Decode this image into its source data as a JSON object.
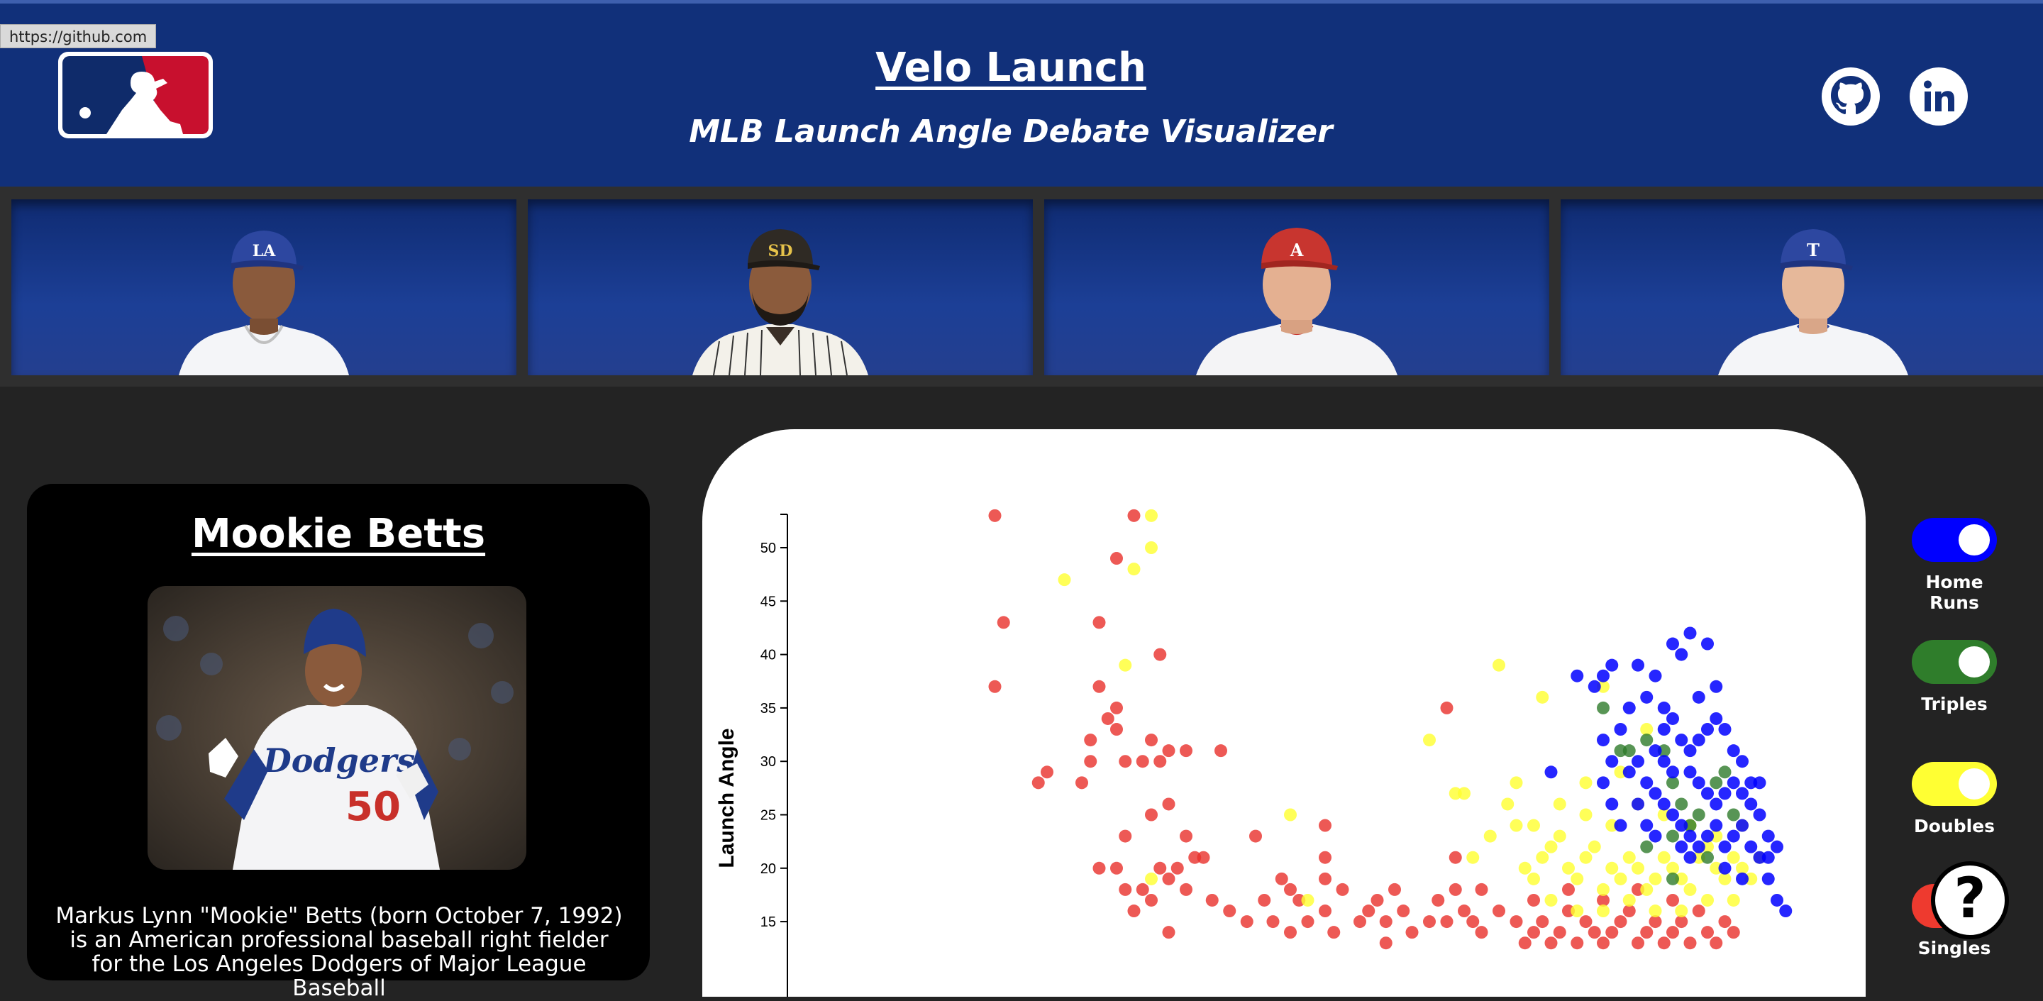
{
  "browser": {
    "status_url": "https://github.com"
  },
  "header": {
    "title": "Velo Launch",
    "subtitle": "MLB Launch Angle Debate Visualizer",
    "logo_icon": "mlb-logo",
    "links": [
      {
        "icon": "github-icon"
      },
      {
        "icon": "linkedin-icon"
      }
    ]
  },
  "players": [
    {
      "team": "LA",
      "cap_color": "#2d47a0",
      "logo_color": "#ffffff",
      "jersey": "white"
    },
    {
      "team": "SD",
      "cap_color": "#2f2a24",
      "logo_color": "#e6c24a",
      "jersey": "pinstripe"
    },
    {
      "team": "A",
      "cap_color": "#c8352f",
      "logo_color": "#ffffff",
      "jersey": "white"
    },
    {
      "team": "T",
      "cap_color": "#2d47a0",
      "logo_color": "#ffffff",
      "jersey": "white"
    }
  ],
  "bio": {
    "name": "Mookie Betts",
    "text": "Markus Lynn \"Mookie\" Betts (born October 7, 1992) is an American professional baseball right fielder for the Los Angeles Dodgers of Major League Baseball",
    "jersey_text": "Dodgers",
    "jersey_number": "50"
  },
  "toggles": [
    {
      "label": "Home Runs",
      "color": "#0000ff"
    },
    {
      "label": "Triples",
      "color": "#2f7d2b"
    },
    {
      "label": "Doubles",
      "color": "#ffff33"
    },
    {
      "label": "Singles",
      "color": "#ee3a2f"
    }
  ],
  "help": {
    "label": "?"
  },
  "chart_data": {
    "type": "scatter",
    "ylabel": "Launch Angle",
    "xlabel": "",
    "yticks": [
      15,
      20,
      25,
      30,
      35,
      40,
      45,
      50
    ],
    "ylim": [
      12,
      53
    ],
    "xlim": [
      0,
      100
    ],
    "series": [
      {
        "name": "Singles",
        "color": "#e8302a",
        "points": [
          [
            10,
            53
          ],
          [
            11,
            43
          ],
          [
            10,
            37
          ],
          [
            26,
            53
          ],
          [
            24,
            49
          ],
          [
            22,
            43
          ],
          [
            22,
            37
          ],
          [
            21,
            32
          ],
          [
            21,
            30
          ],
          [
            20,
            28
          ],
          [
            16,
            29
          ],
          [
            15,
            28
          ],
          [
            24,
            35
          ],
          [
            23,
            34
          ],
          [
            24,
            33
          ],
          [
            25,
            30
          ],
          [
            29,
            40
          ],
          [
            28,
            32
          ],
          [
            27,
            30
          ],
          [
            29,
            30
          ],
          [
            30,
            31
          ],
          [
            32,
            31
          ],
          [
            36,
            31
          ],
          [
            28,
            25
          ],
          [
            30,
            26
          ],
          [
            25,
            23
          ],
          [
            22,
            20
          ],
          [
            24,
            20
          ],
          [
            25,
            18
          ],
          [
            27,
            18
          ],
          [
            26,
            16
          ],
          [
            28,
            17
          ],
          [
            30,
            19
          ],
          [
            31,
            20
          ],
          [
            29,
            20
          ],
          [
            32,
            23
          ],
          [
            33,
            21
          ],
          [
            34,
            21
          ],
          [
            30,
            14
          ],
          [
            32,
            18
          ],
          [
            35,
            17
          ],
          [
            37,
            16
          ],
          [
            39,
            15
          ],
          [
            40,
            23
          ],
          [
            41,
            17
          ],
          [
            43,
            19
          ],
          [
            44,
            18
          ],
          [
            45,
            17
          ],
          [
            42,
            15
          ],
          [
            44,
            14
          ],
          [
            46,
            15
          ],
          [
            48,
            16
          ],
          [
            48,
            19
          ],
          [
            48,
            21
          ],
          [
            48,
            24
          ],
          [
            49,
            14
          ],
          [
            50,
            18
          ],
          [
            52,
            15
          ],
          [
            53,
            16
          ],
          [
            54,
            17
          ],
          [
            55,
            15
          ],
          [
            56,
            18
          ],
          [
            57,
            16
          ],
          [
            55,
            13
          ],
          [
            58,
            14
          ],
          [
            60,
            15
          ],
          [
            61,
            17
          ],
          [
            62,
            15
          ],
          [
            63,
            18
          ],
          [
            64,
            16
          ],
          [
            65,
            15
          ],
          [
            66,
            14
          ],
          [
            62,
            35
          ],
          [
            63,
            21
          ],
          [
            66,
            18
          ],
          [
            68,
            16
          ],
          [
            70,
            15
          ],
          [
            71,
            13
          ],
          [
            72,
            14
          ],
          [
            73,
            15
          ],
          [
            74,
            13
          ],
          [
            75,
            14
          ],
          [
            76,
            16
          ],
          [
            77,
            13
          ],
          [
            78,
            15
          ],
          [
            79,
            14
          ],
          [
            80,
            13
          ],
          [
            81,
            14
          ],
          [
            82,
            15
          ],
          [
            83,
            16
          ],
          [
            84,
            13
          ],
          [
            85,
            14
          ],
          [
            86,
            15
          ],
          [
            87,
            13
          ],
          [
            88,
            14
          ],
          [
            89,
            15
          ],
          [
            90,
            13
          ],
          [
            91,
            16
          ],
          [
            92,
            14
          ],
          [
            93,
            13
          ],
          [
            94,
            15
          ],
          [
            95,
            14
          ],
          [
            72,
            17
          ],
          [
            76,
            18
          ],
          [
            80,
            17
          ],
          [
            84,
            18
          ],
          [
            88,
            17
          ]
        ]
      },
      {
        "name": "Doubles",
        "color": "#ffff2e",
        "points": [
          [
            28,
            53
          ],
          [
            28,
            50
          ],
          [
            26,
            48
          ],
          [
            18,
            47
          ],
          [
            25,
            39
          ],
          [
            28,
            19
          ],
          [
            44,
            25
          ],
          [
            46,
            17
          ],
          [
            60,
            32
          ],
          [
            63,
            27
          ],
          [
            64,
            27
          ],
          [
            65,
            21
          ],
          [
            67,
            23
          ],
          [
            69,
            26
          ],
          [
            70,
            24
          ],
          [
            70,
            28
          ],
          [
            71,
            20
          ],
          [
            72,
            19
          ],
          [
            73,
            21
          ],
          [
            74,
            22
          ],
          [
            75,
            23
          ],
          [
            76,
            20
          ],
          [
            77,
            19
          ],
          [
            78,
            21
          ],
          [
            79,
            22
          ],
          [
            80,
            18
          ],
          [
            81,
            20
          ],
          [
            82,
            19
          ],
          [
            83,
            21
          ],
          [
            84,
            20
          ],
          [
            85,
            18
          ],
          [
            86,
            19
          ],
          [
            87,
            21
          ],
          [
            88,
            20
          ],
          [
            89,
            19
          ],
          [
            90,
            18
          ],
          [
            91,
            21
          ],
          [
            92,
            22
          ],
          [
            93,
            20
          ],
          [
            94,
            19
          ],
          [
            95,
            21
          ],
          [
            96,
            20
          ],
          [
            97,
            19
          ],
          [
            98,
            21
          ],
          [
            72,
            24
          ],
          [
            75,
            26
          ],
          [
            78,
            25
          ],
          [
            81,
            24
          ],
          [
            84,
            26
          ],
          [
            87,
            25
          ],
          [
            90,
            24
          ],
          [
            93,
            23
          ],
          [
            96,
            24
          ],
          [
            74,
            17
          ],
          [
            77,
            16
          ],
          [
            80,
            16
          ],
          [
            83,
            17
          ],
          [
            86,
            16
          ],
          [
            89,
            16
          ],
          [
            92,
            17
          ],
          [
            95,
            17
          ],
          [
            68,
            39
          ],
          [
            80,
            37
          ],
          [
            73,
            36
          ],
          [
            85,
            33
          ],
          [
            78,
            28
          ],
          [
            82,
            29
          ]
        ]
      },
      {
        "name": "Triples",
        "color": "#2e7a2a",
        "points": [
          [
            80,
            35
          ],
          [
            82,
            31
          ],
          [
            83,
            31
          ],
          [
            85,
            32
          ],
          [
            87,
            31
          ],
          [
            88,
            28
          ],
          [
            89,
            26
          ],
          [
            90,
            24
          ],
          [
            91,
            25
          ],
          [
            93,
            28
          ],
          [
            94,
            29
          ],
          [
            95,
            25
          ],
          [
            88,
            23
          ],
          [
            85,
            22
          ],
          [
            92,
            21
          ],
          [
            88,
            19
          ]
        ]
      },
      {
        "name": "Home Runs",
        "color": "#0000ff",
        "points": [
          [
            74,
            29
          ],
          [
            77,
            38
          ],
          [
            79,
            37
          ],
          [
            80,
            38
          ],
          [
            81,
            39
          ],
          [
            84,
            39
          ],
          [
            86,
            38
          ],
          [
            88,
            41
          ],
          [
            89,
            40
          ],
          [
            90,
            42
          ],
          [
            92,
            41
          ],
          [
            93,
            37
          ],
          [
            91,
            36
          ],
          [
            87,
            35
          ],
          [
            85,
            36
          ],
          [
            83,
            35
          ],
          [
            82,
            33
          ],
          [
            80,
            32
          ],
          [
            81,
            30
          ],
          [
            83,
            29
          ],
          [
            84,
            30
          ],
          [
            86,
            31
          ],
          [
            87,
            33
          ],
          [
            88,
            34
          ],
          [
            89,
            32
          ],
          [
            90,
            31
          ],
          [
            91,
            32
          ],
          [
            92,
            33
          ],
          [
            93,
            34
          ],
          [
            94,
            33
          ],
          [
            95,
            31
          ],
          [
            96,
            30
          ],
          [
            97,
            28
          ],
          [
            98,
            28
          ],
          [
            87,
            30
          ],
          [
            88,
            29
          ],
          [
            90,
            29
          ],
          [
            91,
            28
          ],
          [
            92,
            27
          ],
          [
            93,
            26
          ],
          [
            94,
            27
          ],
          [
            95,
            28
          ],
          [
            96,
            27
          ],
          [
            97,
            26
          ],
          [
            98,
            25
          ],
          [
            99,
            23
          ],
          [
            100,
            22
          ],
          [
            85,
            28
          ],
          [
            86,
            27
          ],
          [
            87,
            26
          ],
          [
            88,
            25
          ],
          [
            89,
            24
          ],
          [
            90,
            23
          ],
          [
            91,
            22
          ],
          [
            92,
            23
          ],
          [
            93,
            24
          ],
          [
            94,
            22
          ],
          [
            95,
            23
          ],
          [
            96,
            24
          ],
          [
            97,
            22
          ],
          [
            98,
            21
          ],
          [
            99,
            19
          ],
          [
            100,
            17
          ],
          [
            101,
            16
          ],
          [
            80,
            28
          ],
          [
            81,
            26
          ],
          [
            82,
            24
          ],
          [
            84,
            26
          ],
          [
            85,
            24
          ],
          [
            86,
            23
          ],
          [
            89,
            22
          ],
          [
            90,
            21
          ],
          [
            94,
            20
          ],
          [
            96,
            19
          ],
          [
            99,
            21
          ]
        ]
      }
    ]
  }
}
